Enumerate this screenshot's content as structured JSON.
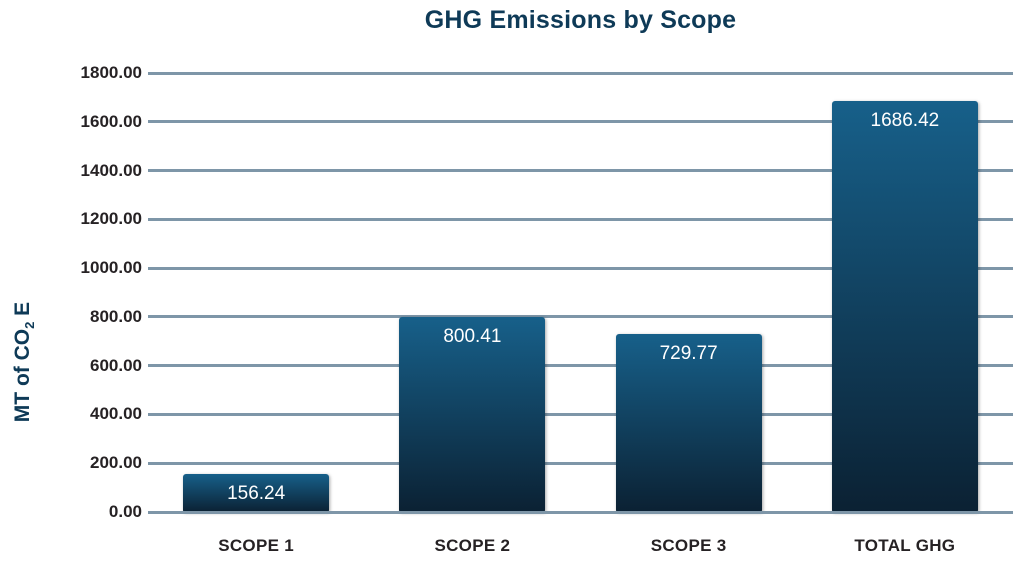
{
  "chart_data": {
    "type": "bar",
    "title": "GHG Emissions by Scope",
    "categories": [
      "SCOPE 1",
      "SCOPE 2",
      "SCOPE 3",
      "TOTAL GHG"
    ],
    "values": [
      156.24,
      800.41,
      729.77,
      1686.42
    ],
    "bar_labels": [
      "156.24",
      "800.41",
      "729.77",
      "1686.42"
    ],
    "ylabel": "MT of CO2 E",
    "ylabel_parts": {
      "prefix": "MT of CO",
      "sub": "2",
      "suffix": " E"
    },
    "ylim": [
      0,
      1800
    ],
    "ytick_step": 200,
    "yticks": [
      "1800.00",
      "1600.00",
      "1400.00",
      "1200.00",
      "1000.00",
      "800.00",
      "600.00",
      "400.00",
      "200.00",
      "0.00"
    ],
    "grid": true,
    "legend": false,
    "xlabel": "",
    "colors": {
      "title": "#0e3a57",
      "axis_text": "#262224",
      "gridline": "#7e96a8",
      "bar_top": "#17608a",
      "bar_bottom": "#0b2133",
      "bar_label": "#ffffff"
    }
  }
}
